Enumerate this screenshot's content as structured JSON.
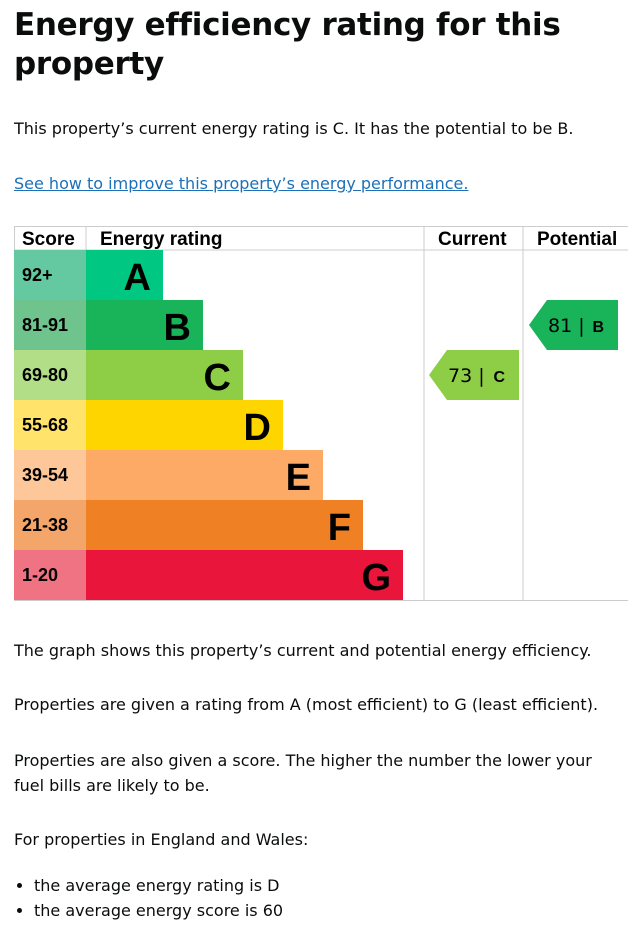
{
  "title": "Energy efficiency rating for this property",
  "intro": "This property’s current energy rating is C. It has the potential to be B.",
  "link": "See how to improve this property’s energy performance.",
  "chart_data": {
    "type": "bar",
    "headers": {
      "score": "Score",
      "rating": "Energy rating",
      "current": "Current",
      "potential": "Potential"
    },
    "bands": [
      {
        "letter": "A",
        "range": "92+",
        "color": "#00c781",
        "score_color": "#64c9a0"
      },
      {
        "letter": "B",
        "range": "81-91",
        "color": "#19b459",
        "score_color": "#6fc48d"
      },
      {
        "letter": "C",
        "range": "69-80",
        "color": "#8dce46",
        "score_color": "#b3de88"
      },
      {
        "letter": "D",
        "range": "55-68",
        "color": "#ffd500",
        "score_color": "#ffe36a"
      },
      {
        "letter": "E",
        "range": "39-54",
        "color": "#fcaa65",
        "score_color": "#fdc79a"
      },
      {
        "letter": "F",
        "range": "21-38",
        "color": "#ef8023",
        "score_color": "#f4a56a"
      },
      {
        "letter": "G",
        "range": "1-20",
        "color": "#e9153b",
        "score_color": "#f07384"
      }
    ],
    "current": {
      "score": 73,
      "letter": "C",
      "label": "73 |",
      "color": "#8dce46"
    },
    "potential": {
      "score": 81,
      "letter": "B",
      "label": "81 |",
      "color": "#19b459"
    }
  },
  "para1": "The graph shows this property’s current and potential energy efficiency.",
  "para2": "Properties are given a rating from A (most efficient) to G (least efficient).",
  "para3": "Properties are also given a score. The higher the number the lower your fuel bills are likely to be.",
  "para4": "For properties in England and Wales:",
  "bullets": [
    "the average energy rating is D",
    "the average energy score is 60"
  ]
}
